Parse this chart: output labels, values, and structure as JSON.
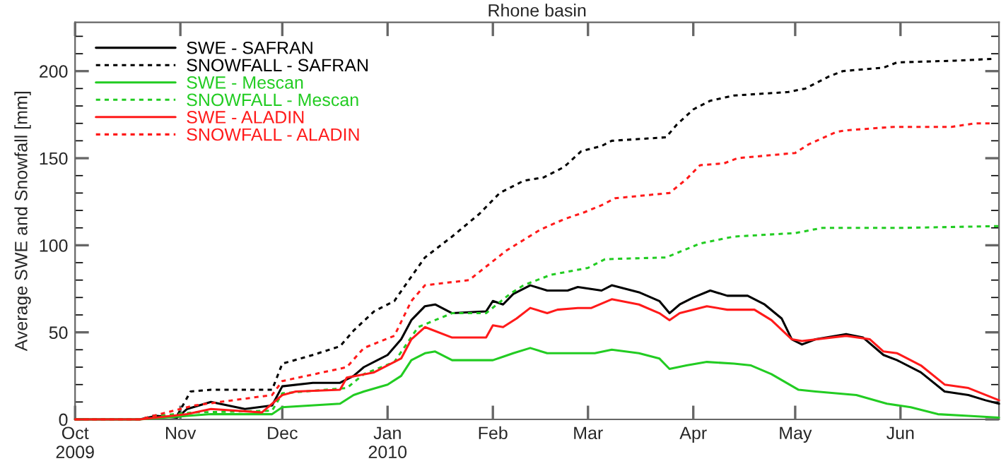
{
  "chart_data": {
    "type": "line",
    "title": "Rhone basin",
    "ylabel": "Average SWE and Snowfall [mm]",
    "xlim": [
      "2009-10-01",
      "2010-06-30"
    ],
    "xticks": [
      {
        "value": "2009-10-01",
        "label": "Oct\n2009"
      },
      {
        "value": "2009-11-01",
        "label": "Nov"
      },
      {
        "value": "2009-12-01",
        "label": "Dec"
      },
      {
        "value": "2010-01-01",
        "label": "Jan\n2010"
      },
      {
        "value": "2010-02-01",
        "label": "Feb"
      },
      {
        "value": "2010-03-01",
        "label": "Mar"
      },
      {
        "value": "2010-04-01",
        "label": "Apr"
      },
      {
        "value": "2010-05-01",
        "label": "May"
      },
      {
        "value": "2010-06-01",
        "label": "Jun"
      }
    ],
    "ylim": [
      0,
      228
    ],
    "yticks": [
      0,
      50,
      100,
      150,
      200
    ],
    "grid": false,
    "legend": "top left",
    "marker": "none",
    "series": [
      {
        "name": "SWE - SAFRAN",
        "color": "#000000",
        "line_style": "solid",
        "x": [
          "2009-10-01",
          "2009-10-20",
          "2009-10-25",
          "2009-10-31",
          "2009-11-03",
          "2009-11-10",
          "2009-11-20",
          "2009-11-28",
          "2009-12-01",
          "2009-12-10",
          "2009-12-18",
          "2009-12-22",
          "2009-12-25",
          "2010-01-01",
          "2010-01-05",
          "2010-01-08",
          "2010-01-12",
          "2010-01-15",
          "2010-01-20",
          "2010-01-30",
          "2010-02-01",
          "2010-02-04",
          "2010-02-07",
          "2010-02-12",
          "2010-02-17",
          "2010-02-23",
          "2010-02-26",
          "2010-03-05",
          "2010-03-08",
          "2010-03-16",
          "2010-03-22",
          "2010-03-25",
          "2010-03-28",
          "2010-04-01",
          "2010-04-06",
          "2010-04-11",
          "2010-04-17",
          "2010-04-22",
          "2010-04-27",
          "2010-04-30",
          "2010-05-03",
          "2010-05-07",
          "2010-05-16",
          "2010-05-21",
          "2010-05-27",
          "2010-05-31",
          "2010-06-07",
          "2010-06-14",
          "2010-06-21",
          "2010-06-26",
          "2010-06-30"
        ],
        "values": [
          0,
          0,
          2,
          1,
          6,
          10,
          6,
          8,
          19,
          21,
          21,
          25,
          30,
          37,
          46,
          57,
          65,
          66,
          61,
          62,
          68,
          66,
          72,
          77,
          74,
          74,
          76,
          74,
          77,
          73,
          68,
          61,
          66,
          70,
          74,
          71,
          71,
          66,
          58,
          46,
          43,
          46,
          49,
          47,
          37,
          34,
          27,
          16,
          14,
          11,
          9
        ]
      },
      {
        "name": "SNOWFALL - SAFRAN",
        "color": "#000000",
        "line_style": "dotted",
        "x": [
          "2009-10-01",
          "2009-10-20",
          "2009-10-24",
          "2009-10-31",
          "2009-11-04",
          "2009-11-10",
          "2009-11-28",
          "2009-12-01",
          "2009-12-10",
          "2009-12-18",
          "2009-12-22",
          "2009-12-28",
          "2010-01-03",
          "2010-01-08",
          "2010-01-12",
          "2010-01-20",
          "2010-01-28",
          "2010-02-03",
          "2010-02-10",
          "2010-02-16",
          "2010-02-22",
          "2010-02-27",
          "2010-03-05",
          "2010-03-08",
          "2010-03-24",
          "2010-03-27",
          "2010-04-01",
          "2010-04-06",
          "2010-04-13",
          "2010-04-29",
          "2010-05-04",
          "2010-05-11",
          "2010-05-15",
          "2010-05-27",
          "2010-05-31",
          "2010-06-17",
          "2010-06-28"
        ],
        "values": [
          0,
          0,
          2,
          2,
          16,
          17,
          17,
          32,
          37,
          42,
          51,
          62,
          68,
          82,
          93,
          105,
          118,
          130,
          137,
          139,
          145,
          154,
          157,
          160,
          162,
          169,
          178,
          183,
          186,
          188,
          190,
          197,
          200,
          202,
          205,
          206,
          207
        ]
      },
      {
        "name": "SWE - Mescan",
        "color": "#22cc22",
        "line_style": "solid",
        "x": [
          "2009-10-01",
          "2009-10-20",
          "2009-11-03",
          "2009-11-10",
          "2009-11-28",
          "2009-12-01",
          "2009-12-18",
          "2009-12-22",
          "2009-12-25",
          "2010-01-01",
          "2010-01-05",
          "2010-01-08",
          "2010-01-12",
          "2010-01-15",
          "2010-01-20",
          "2010-01-30",
          "2010-02-01",
          "2010-02-04",
          "2010-02-07",
          "2010-02-12",
          "2010-02-17",
          "2010-02-26",
          "2010-03-03",
          "2010-03-08",
          "2010-03-16",
          "2010-03-22",
          "2010-03-25",
          "2010-03-30",
          "2010-04-05",
          "2010-04-13",
          "2010-04-18",
          "2010-04-24",
          "2010-05-02",
          "2010-05-07",
          "2010-05-19",
          "2010-05-28",
          "2010-06-04",
          "2010-06-12",
          "2010-06-21",
          "2010-06-30"
        ],
        "values": [
          0,
          0,
          2,
          3,
          3,
          7,
          9,
          14,
          16,
          20,
          25,
          34,
          38,
          39,
          34,
          34,
          34,
          36,
          38,
          41,
          38,
          38,
          38,
          40,
          38,
          35,
          29,
          31,
          33,
          32,
          31,
          26,
          17,
          16,
          14,
          9,
          7,
          3,
          2,
          1
        ]
      },
      {
        "name": "SNOWFALL - Mescan",
        "color": "#22cc22",
        "line_style": "dotted",
        "x": [
          "2009-10-01",
          "2009-10-20",
          "2009-10-25",
          "2009-11-05",
          "2009-11-28",
          "2009-12-01",
          "2009-12-20",
          "2009-12-25",
          "2010-01-03",
          "2010-01-10",
          "2010-01-15",
          "2010-01-20",
          "2010-01-30",
          "2010-02-06",
          "2010-02-10",
          "2010-02-18",
          "2010-03-01",
          "2010-03-06",
          "2010-03-24",
          "2010-04-03",
          "2010-04-13",
          "2010-05-01",
          "2010-05-09",
          "2010-06-02",
          "2010-06-30"
        ],
        "values": [
          0,
          0,
          2,
          4,
          5,
          15,
          18,
          26,
          33,
          53,
          57,
          61,
          61,
          72,
          77,
          83,
          87,
          92,
          93,
          101,
          105,
          107,
          110,
          110,
          111
        ]
      },
      {
        "name": "SWE - ALADIN",
        "color": "#ff1a1a",
        "line_style": "solid",
        "x": [
          "2009-10-01",
          "2009-10-20",
          "2009-11-03",
          "2009-11-10",
          "2009-11-25",
          "2009-12-01",
          "2009-12-05",
          "2009-12-18",
          "2009-12-20",
          "2009-12-28",
          "2010-01-05",
          "2010-01-08",
          "2010-01-12",
          "2010-01-20",
          "2010-01-30",
          "2010-02-01",
          "2010-02-04",
          "2010-02-08",
          "2010-02-12",
          "2010-02-17",
          "2010-02-20",
          "2010-02-26",
          "2010-03-02",
          "2010-03-08",
          "2010-03-16",
          "2010-03-22",
          "2010-03-25",
          "2010-03-28",
          "2010-04-05",
          "2010-04-11",
          "2010-04-19",
          "2010-04-24",
          "2010-04-30",
          "2010-05-03",
          "2010-05-16",
          "2010-05-23",
          "2010-05-27",
          "2010-05-31",
          "2010-06-07",
          "2010-06-14",
          "2010-06-21",
          "2010-06-30"
        ],
        "values": [
          0,
          0,
          3,
          6,
          4,
          14,
          16,
          17,
          24,
          27,
          35,
          46,
          53,
          47,
          47,
          54,
          53,
          58,
          64,
          61,
          63,
          64,
          64,
          69,
          66,
          61,
          57,
          61,
          65,
          63,
          63,
          57,
          46,
          45,
          48,
          46,
          39,
          38,
          31,
          20,
          18,
          11
        ]
      },
      {
        "name": "SNOWFALL - ALADIN",
        "color": "#ff1a1a",
        "line_style": "dotted",
        "x": [
          "2009-10-01",
          "2009-10-20",
          "2009-11-05",
          "2009-11-28",
          "2009-12-01",
          "2009-12-20",
          "2009-12-25",
          "2010-01-03",
          "2010-01-08",
          "2010-01-12",
          "2010-01-25",
          "2010-02-05",
          "2010-02-10",
          "2010-02-15",
          "2010-02-22",
          "2010-02-28",
          "2010-03-05",
          "2010-03-09",
          "2010-03-25",
          "2010-03-30",
          "2010-04-03",
          "2010-04-10",
          "2010-04-14",
          "2010-05-01",
          "2010-05-05",
          "2010-05-13",
          "2010-05-16",
          "2010-05-30",
          "2010-06-16",
          "2010-06-23",
          "2010-06-28"
        ],
        "values": [
          0,
          0,
          8,
          14,
          22,
          30,
          41,
          48,
          68,
          77,
          80,
          97,
          103,
          109,
          115,
          119,
          123,
          127,
          130,
          138,
          146,
          147,
          150,
          153,
          158,
          165,
          166,
          168,
          168,
          170,
          170
        ]
      }
    ]
  }
}
